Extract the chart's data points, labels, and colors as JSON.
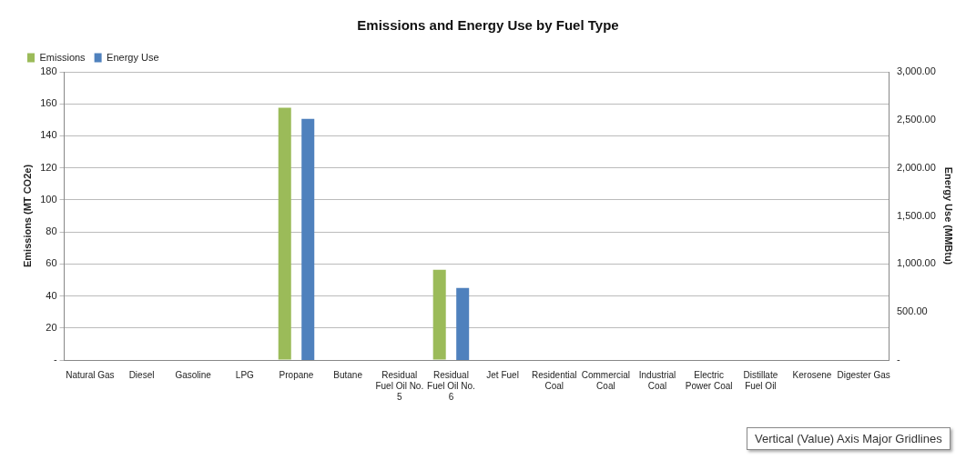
{
  "chart_data": {
    "type": "bar",
    "title": "Emissions and Energy Use by Fuel Type",
    "ylabel": "Emissions (MT CO2e)",
    "y2label": "Energy Use (MMBtu)",
    "categories": [
      "Natural Gas",
      "Diesel",
      "Gasoline",
      "LPG",
      "Propane",
      "Butane",
      "Residual Fuel Oil No. 5",
      "Residual Fuel Oil No. 6",
      "Jet Fuel",
      "Residential Coal",
      "Commercial Coal",
      "Industrial Coal",
      "Electric Power Coal",
      "Distillate Fuel Oil",
      "Kerosene",
      "Digester Gas"
    ],
    "series": [
      {
        "name": "Emissions",
        "color": "#9bbb59",
        "values": [
          0,
          0,
          0,
          0,
          157.6,
          0,
          0,
          56.3,
          0,
          0,
          0,
          0,
          0,
          0,
          0,
          0
        ]
      },
      {
        "name": "Energy Use",
        "color": "#4f81bd",
        "axis": "y2",
        "values": [
          0,
          0,
          0,
          0,
          2510,
          0,
          0,
          750,
          0,
          0,
          0,
          0,
          0,
          0,
          0,
          0
        ]
      }
    ],
    "ylim": [
      0,
      180
    ],
    "yticks": [
      {
        "value": 0,
        "label": "-"
      },
      20,
      40,
      60,
      80,
      100,
      120,
      140,
      160,
      180
    ],
    "y2lim": [
      0,
      3000
    ],
    "y2ticks": [
      {
        "value": 0,
        "label": "-"
      },
      {
        "value": 500,
        "label": "500.00"
      },
      {
        "value": 1000,
        "label": "1,000.00"
      },
      {
        "value": 1500,
        "label": "1,500.00"
      },
      {
        "value": 2000,
        "label": "2,000.00"
      },
      {
        "value": 2500,
        "label": "2,500.00"
      },
      {
        "value": 3000,
        "label": "3,000.00"
      }
    ],
    "grid": "y",
    "legend": "top left",
    "annotations": [
      "Vertical (Value) Axis Major Gridlines"
    ]
  }
}
